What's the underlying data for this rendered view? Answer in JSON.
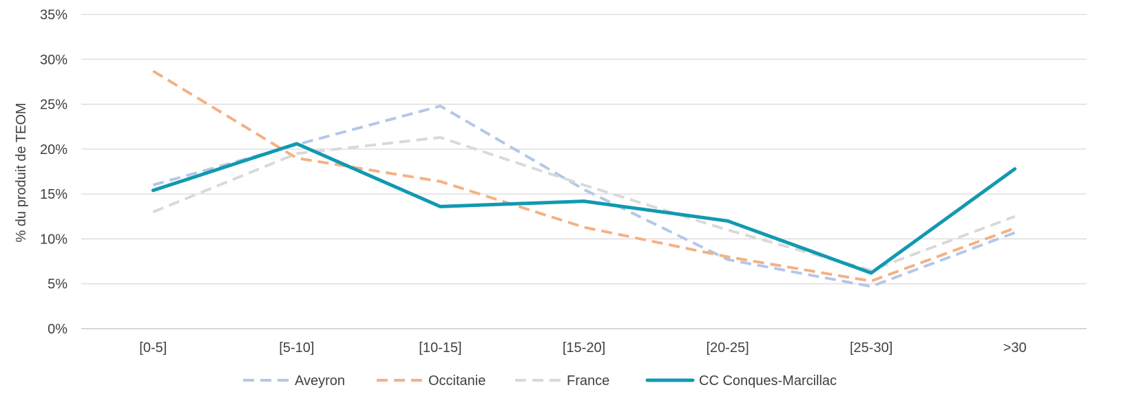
{
  "chart_data": {
    "type": "line",
    "title": "",
    "xlabel": "",
    "ylabel": "% du produit de TEOM",
    "ylim": [
      0,
      35
    ],
    "yticks": [
      0,
      5,
      10,
      15,
      20,
      25,
      30,
      35
    ],
    "ytick_labels": [
      "0%",
      "5%",
      "10%",
      "15%",
      "20%",
      "25%",
      "30%",
      "35%"
    ],
    "grid": true,
    "legend_position": "bottom",
    "categories": [
      "[0-5]",
      "[5-10]",
      "[10-15]",
      "[15-20]",
      "[20-25]",
      "[25-30]",
      ">30"
    ],
    "series": [
      {
        "name": "Aveyron",
        "color": "#b4c7e7",
        "style": "dashed",
        "values": [
          16.0,
          20.5,
          24.8,
          15.5,
          7.7,
          4.7,
          10.7
        ]
      },
      {
        "name": "Occitanie",
        "color": "#f4b183",
        "style": "dashed",
        "values": [
          28.7,
          19.0,
          16.4,
          11.3,
          8.0,
          5.3,
          11.2
        ]
      },
      {
        "name": "France",
        "color": "#d9d9d9",
        "style": "dashed",
        "values": [
          13.0,
          19.5,
          21.3,
          16.0,
          11.0,
          6.5,
          12.5
        ]
      },
      {
        "name": "CC Conques-Marcillac",
        "color": "#1199b1",
        "style": "solid",
        "values": [
          15.4,
          20.6,
          13.6,
          14.2,
          12.0,
          6.2,
          17.8
        ]
      }
    ]
  }
}
